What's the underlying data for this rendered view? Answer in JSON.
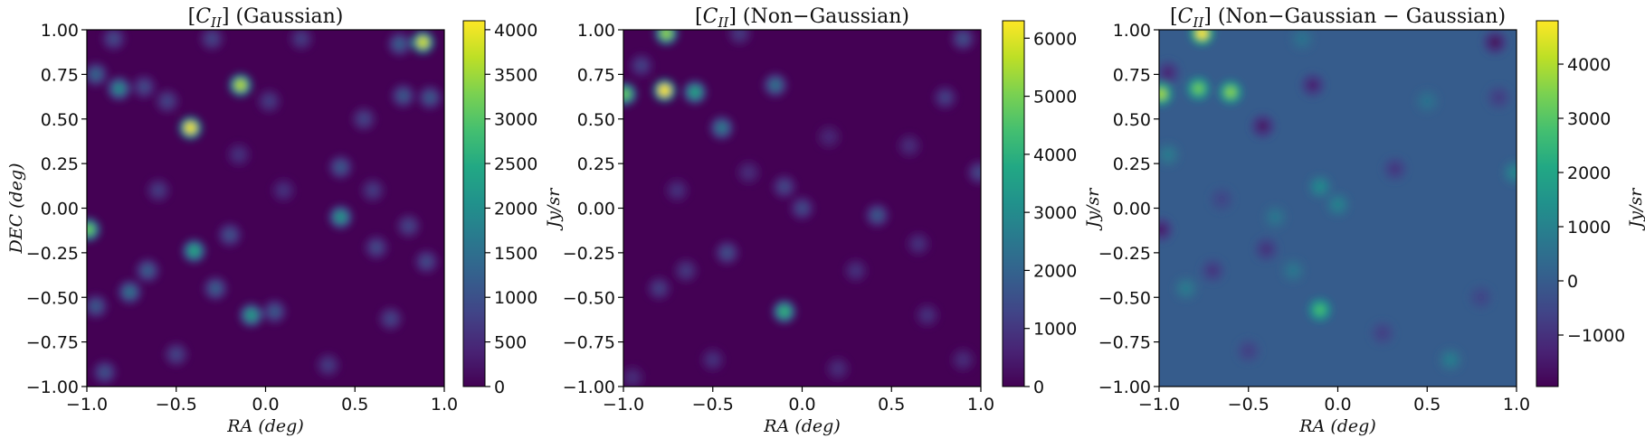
{
  "chart_data": [
    {
      "type": "heatmap",
      "title_main": "C",
      "title_sub": "II",
      "title_rest": "(Gaussian)",
      "xlabel": "RA (deg)",
      "ylabel": "DEC (deg)",
      "xlim": [
        -1.0,
        1.0
      ],
      "ylim": [
        -1.0,
        1.0
      ],
      "xticks": [
        "−1.0",
        "−0.5",
        "0.0",
        "0.5",
        "1.0"
      ],
      "yticks": [
        "−1.00",
        "−0.75",
        "−0.50",
        "−0.25",
        "0.00",
        "0.25",
        "0.50",
        "0.75",
        "1.00"
      ],
      "colorbar_label": "Jy/sr",
      "colorbar_range": [
        0,
        4100
      ],
      "colorbar_ticks": [
        {
          "v": 0,
          "t": "0"
        },
        {
          "v": 500,
          "t": "500"
        },
        {
          "v": 1000,
          "t": "1000"
        },
        {
          "v": 1500,
          "t": "1500"
        },
        {
          "v": 2000,
          "t": "2000"
        },
        {
          "v": 2500,
          "t": "2500"
        },
        {
          "v": 3000,
          "t": "3000"
        },
        {
          "v": 3500,
          "t": "3500"
        },
        {
          "v": 4000,
          "t": "4000"
        }
      ],
      "colormap": "viridis",
      "background_value": 0,
      "sources": [
        {
          "ra": 0.88,
          "dec": 0.93,
          "value": 3800
        },
        {
          "ra": -0.14,
          "dec": 0.69,
          "value": 3600
        },
        {
          "ra": -0.42,
          "dec": 0.45,
          "value": 4000
        },
        {
          "ra": -0.99,
          "dec": -0.12,
          "value": 3100
        },
        {
          "ra": -0.4,
          "dec": -0.24,
          "value": 2400
        },
        {
          "ra": -0.08,
          "dec": -0.6,
          "value": 2200
        },
        {
          "ra": 0.42,
          "dec": -0.05,
          "value": 2100
        },
        {
          "ra": -0.82,
          "dec": 0.67,
          "value": 1900
        },
        {
          "ra": 0.42,
          "dec": 0.23,
          "value": 1100
        },
        {
          "ra": -0.76,
          "dec": -0.47,
          "value": 1500
        },
        {
          "ra": -0.66,
          "dec": -0.35,
          "value": 1200
        },
        {
          "ra": -0.95,
          "dec": 0.75,
          "value": 1300
        },
        {
          "ra": 0.77,
          "dec": 0.63,
          "value": 1100
        },
        {
          "ra": 0.92,
          "dec": 0.62,
          "value": 1100
        },
        {
          "ra": -0.55,
          "dec": 0.6,
          "value": 800
        },
        {
          "ra": -0.68,
          "dec": 0.68,
          "value": 900
        },
        {
          "ra": -0.85,
          "dec": 0.95,
          "value": 900
        },
        {
          "ra": -0.3,
          "dec": 0.95,
          "value": 800
        },
        {
          "ra": 0.2,
          "dec": 0.95,
          "value": 700
        },
        {
          "ra": 0.75,
          "dec": 0.92,
          "value": 1200
        },
        {
          "ra": 0.02,
          "dec": 0.6,
          "value": 700
        },
        {
          "ra": 0.55,
          "dec": 0.5,
          "value": 800
        },
        {
          "ra": 0.62,
          "dec": -0.22,
          "value": 900
        },
        {
          "ra": 0.8,
          "dec": -0.1,
          "value": 800
        },
        {
          "ra": 0.9,
          "dec": -0.3,
          "value": 900
        },
        {
          "ra": -0.2,
          "dec": -0.15,
          "value": 1000
        },
        {
          "ra": -0.28,
          "dec": -0.45,
          "value": 1200
        },
        {
          "ra": 0.05,
          "dec": -0.58,
          "value": 1100
        },
        {
          "ra": -0.9,
          "dec": -0.92,
          "value": 1000
        },
        {
          "ra": -0.5,
          "dec": -0.82,
          "value": 800
        },
        {
          "ra": 0.35,
          "dec": -0.88,
          "value": 700
        },
        {
          "ra": 0.7,
          "dec": -0.62,
          "value": 800
        },
        {
          "ra": -0.95,
          "dec": -0.55,
          "value": 1100
        },
        {
          "ra": 0.1,
          "dec": 0.1,
          "value": 600
        },
        {
          "ra": -0.6,
          "dec": 0.1,
          "value": 700
        },
        {
          "ra": 0.6,
          "dec": 0.1,
          "value": 700
        },
        {
          "ra": -0.15,
          "dec": 0.3,
          "value": 600
        }
      ]
    },
    {
      "type": "heatmap",
      "title_main": "C",
      "title_sub": "II",
      "title_rest": "(Non−Gaussian)",
      "xlabel": "RA (deg)",
      "ylabel": "",
      "xlim": [
        -1.0,
        1.0
      ],
      "ylim": [
        -1.0,
        1.0
      ],
      "xticks": [
        "−1.0",
        "−0.5",
        "0.0",
        "0.5",
        "1.0"
      ],
      "yticks": [
        "−1.00",
        "−0.75",
        "−0.50",
        "−0.25",
        "0.00",
        "0.25",
        "0.50",
        "0.75",
        "1.00"
      ],
      "colorbar_label": "Jy/sr",
      "colorbar_range": [
        0,
        6300
      ],
      "colorbar_ticks": [
        {
          "v": 0,
          "t": "0"
        },
        {
          "v": 1000,
          "t": "1000"
        },
        {
          "v": 2000,
          "t": "2000"
        },
        {
          "v": 3000,
          "t": "3000"
        },
        {
          "v": 4000,
          "t": "4000"
        },
        {
          "v": 5000,
          "t": "5000"
        },
        {
          "v": 6000,
          "t": "6000"
        }
      ],
      "colormap": "viridis",
      "background_value": 0,
      "sources": [
        {
          "ra": -0.77,
          "dec": 0.66,
          "value": 6300
        },
        {
          "ra": -0.76,
          "dec": 0.98,
          "value": 5200
        },
        {
          "ra": -0.99,
          "dec": 0.64,
          "value": 4700
        },
        {
          "ra": -0.6,
          "dec": 0.65,
          "value": 3600
        },
        {
          "ra": -0.1,
          "dec": -0.58,
          "value": 4000
        },
        {
          "ra": -0.45,
          "dec": 0.45,
          "value": 2500
        },
        {
          "ra": -0.15,
          "dec": 0.69,
          "value": 2300
        },
        {
          "ra": 0.42,
          "dec": -0.04,
          "value": 1700
        },
        {
          "ra": -0.42,
          "dec": -0.25,
          "value": 1500
        },
        {
          "ra": 0.0,
          "dec": 0.0,
          "value": 1400
        },
        {
          "ra": -0.1,
          "dec": 0.12,
          "value": 1300
        },
        {
          "ra": 0.9,
          "dec": 0.95,
          "value": 1500
        },
        {
          "ra": 0.8,
          "dec": 0.62,
          "value": 1200
        },
        {
          "ra": -0.9,
          "dec": 0.8,
          "value": 1200
        },
        {
          "ra": -0.35,
          "dec": 0.98,
          "value": 1000
        },
        {
          "ra": 0.99,
          "dec": 0.2,
          "value": 1300
        },
        {
          "ra": -0.65,
          "dec": -0.35,
          "value": 1000
        },
        {
          "ra": -0.8,
          "dec": -0.45,
          "value": 1100
        },
        {
          "ra": 0.3,
          "dec": -0.35,
          "value": 900
        },
        {
          "ra": 0.65,
          "dec": -0.2,
          "value": 900
        },
        {
          "ra": -0.95,
          "dec": -0.95,
          "value": 800
        },
        {
          "ra": -0.5,
          "dec": -0.85,
          "value": 900
        },
        {
          "ra": 0.2,
          "dec": -0.9,
          "value": 800
        },
        {
          "ra": 0.7,
          "dec": -0.6,
          "value": 900
        },
        {
          "ra": 0.6,
          "dec": 0.35,
          "value": 800
        },
        {
          "ra": 0.15,
          "dec": 0.4,
          "value": 700
        },
        {
          "ra": -0.3,
          "dec": 0.2,
          "value": 800
        },
        {
          "ra": -0.7,
          "dec": 0.1,
          "value": 900
        },
        {
          "ra": 0.9,
          "dec": -0.85,
          "value": 800
        }
      ]
    },
    {
      "type": "heatmap",
      "title_main": "C",
      "title_sub": "II",
      "title_rest": "(Non−Gaussian − Gaussian)",
      "xlabel": "RA (deg)",
      "ylabel": "",
      "xlim": [
        -1.0,
        1.0
      ],
      "ylim": [
        -1.0,
        1.0
      ],
      "xticks": [
        "−1.0",
        "−0.5",
        "0.0",
        "0.5",
        "1.0"
      ],
      "yticks": [
        "−1.00",
        "−0.75",
        "−0.50",
        "−0.25",
        "0.00",
        "0.25",
        "0.50",
        "0.75",
        "1.00"
      ],
      "colorbar_label": "Jy/sr",
      "colorbar_range": [
        -1950,
        4800
      ],
      "colorbar_ticks": [
        {
          "v": -1000,
          "t": "−1000"
        },
        {
          "v": 0,
          "t": "0"
        },
        {
          "v": 1000,
          "t": "1000"
        },
        {
          "v": 2000,
          "t": "2000"
        },
        {
          "v": 3000,
          "t": "3000"
        },
        {
          "v": 4000,
          "t": "4000"
        }
      ],
      "colormap": "viridis",
      "background_value": 0,
      "sources": [
        {
          "ra": -0.76,
          "dec": 0.98,
          "value": 4800
        },
        {
          "ra": -0.99,
          "dec": 0.64,
          "value": 3800
        },
        {
          "ra": -0.78,
          "dec": 0.67,
          "value": 3200
        },
        {
          "ra": -0.6,
          "dec": 0.65,
          "value": 3500
        },
        {
          "ra": -0.1,
          "dec": -0.57,
          "value": 2700
        },
        {
          "ra": -0.95,
          "dec": 0.76,
          "value": -1300
        },
        {
          "ra": 0.88,
          "dec": 0.93,
          "value": -1800
        },
        {
          "ra": -0.42,
          "dec": 0.46,
          "value": -1600
        },
        {
          "ra": -0.14,
          "dec": 0.69,
          "value": -1400
        },
        {
          "ra": -0.99,
          "dec": -0.12,
          "value": -1500
        },
        {
          "ra": -0.4,
          "dec": -0.23,
          "value": -1000
        },
        {
          "ra": 0.32,
          "dec": 0.22,
          "value": -900
        },
        {
          "ra": -0.1,
          "dec": 0.12,
          "value": 1200
        },
        {
          "ra": 0.0,
          "dec": 0.02,
          "value": 1000
        },
        {
          "ra": 0.99,
          "dec": 0.2,
          "value": 1100
        },
        {
          "ra": 0.63,
          "dec": -0.85,
          "value": 900
        },
        {
          "ra": -0.7,
          "dec": -0.35,
          "value": -900
        },
        {
          "ra": -0.85,
          "dec": -0.45,
          "value": 800
        },
        {
          "ra": -0.25,
          "dec": -0.35,
          "value": 700
        },
        {
          "ra": -0.35,
          "dec": -0.05,
          "value": 700
        },
        {
          "ra": 0.5,
          "dec": 0.6,
          "value": 600
        },
        {
          "ra": -0.95,
          "dec": 0.3,
          "value": 800
        },
        {
          "ra": 0.25,
          "dec": -0.7,
          "value": -700
        },
        {
          "ra": 0.8,
          "dec": -0.5,
          "value": -600
        },
        {
          "ra": -0.5,
          "dec": -0.8,
          "value": -700
        },
        {
          "ra": 0.9,
          "dec": 0.62,
          "value": -800
        },
        {
          "ra": -0.2,
          "dec": 0.95,
          "value": 600
        },
        {
          "ra": -0.65,
          "dec": 0.05,
          "value": -600
        }
      ]
    }
  ]
}
